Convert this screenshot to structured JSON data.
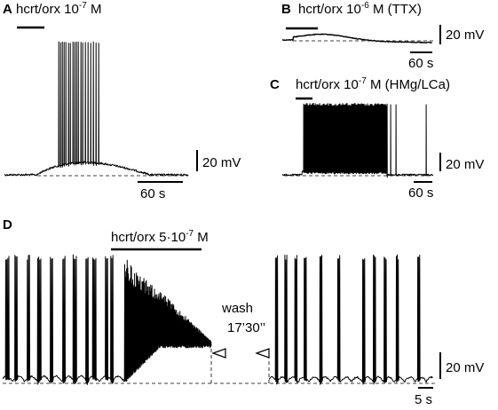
{
  "chart_data": [
    {
      "panel": "A",
      "type": "line",
      "drug_label": "hcrt/orx 10",
      "drug_exponent": "-7",
      "drug_suffix": " M",
      "scale_v_label": "20 mV",
      "scale_t_label": "60 s",
      "description_values": {
        "depolarization_peak_mV": 5,
        "spike_train": true
      }
    },
    {
      "panel": "B",
      "type": "line",
      "drug_label": "hcrt/orx 10",
      "drug_exponent": "-6",
      "drug_suffix": " M (TTX)",
      "scale_v_label": "20 mV",
      "scale_t_label": "60 s",
      "description_values": {
        "depolarization_peak_mV": 3,
        "spike_train": false
      }
    },
    {
      "panel": "C",
      "type": "line",
      "drug_label": "hcrt/orx 10",
      "drug_exponent": "-7",
      "drug_suffix": " M (HMg/LCa)",
      "scale_v_label": "20 mV",
      "scale_t_label": "60 s",
      "description_values": {
        "depolarization_peak_mV": 2,
        "spike_train": true
      }
    },
    {
      "panel": "D",
      "type": "line",
      "drug_label": "hcrt/orx 5·10",
      "drug_exponent": "-7",
      "drug_suffix": " M",
      "wash_label": "wash",
      "wash_time_label": "17’30’’",
      "scale_v_label": "20 mV",
      "scale_t_label": "5 s"
    }
  ]
}
